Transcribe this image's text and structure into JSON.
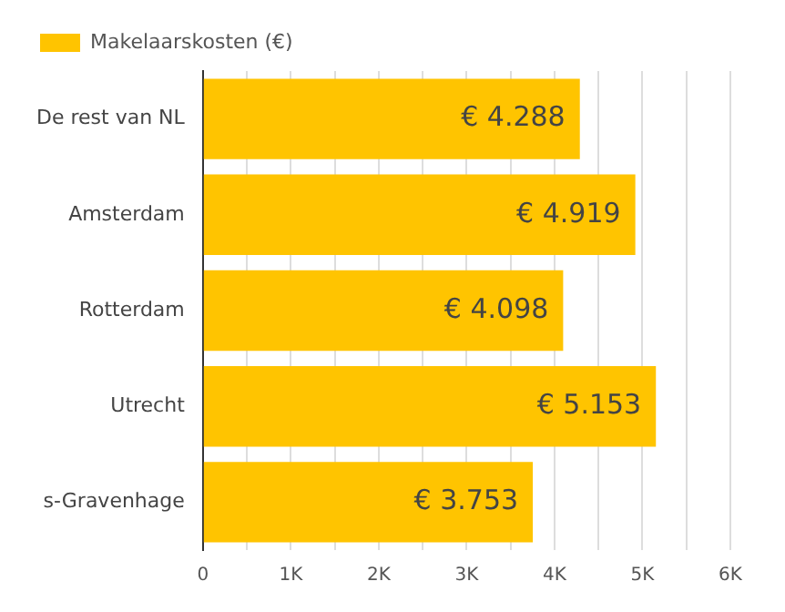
{
  "chart_data": {
    "type": "bar",
    "orientation": "horizontal",
    "categories": [
      "De rest van NL",
      "Amsterdam",
      "Rotterdam",
      "Utrecht",
      "s-Gravenhage"
    ],
    "series": [
      {
        "name": "Makelaarskosten (€)",
        "color": "#ffc400",
        "values": [
          4288,
          4919,
          4098,
          5153,
          3753
        ],
        "value_labels": [
          "€ 4.288",
          "€ 4.919",
          "€ 4.098",
          "€ 5.153",
          "€ 3.753"
        ]
      }
    ],
    "xlim": [
      0,
      6000
    ],
    "xticks": [
      0,
      {
        "value": 500,
        "label": null
      },
      {
        "value": 1000,
        "label": "1K"
      },
      {
        "value": 1500,
        "label": null
      },
      {
        "value": 2000,
        "label": "2K"
      },
      {
        "value": 2500,
        "label": null
      },
      {
        "value": 3000,
        "label": "3K"
      },
      {
        "value": 3500,
        "label": null
      },
      {
        "value": 4000,
        "label": "4K"
      },
      {
        "value": 4500,
        "label": null
      },
      {
        "value": 5000,
        "label": "5K"
      },
      {
        "value": 5500,
        "label": null
      },
      {
        "value": 6000,
        "label": "6K"
      }
    ],
    "grid": "x",
    "legend": "top left"
  }
}
